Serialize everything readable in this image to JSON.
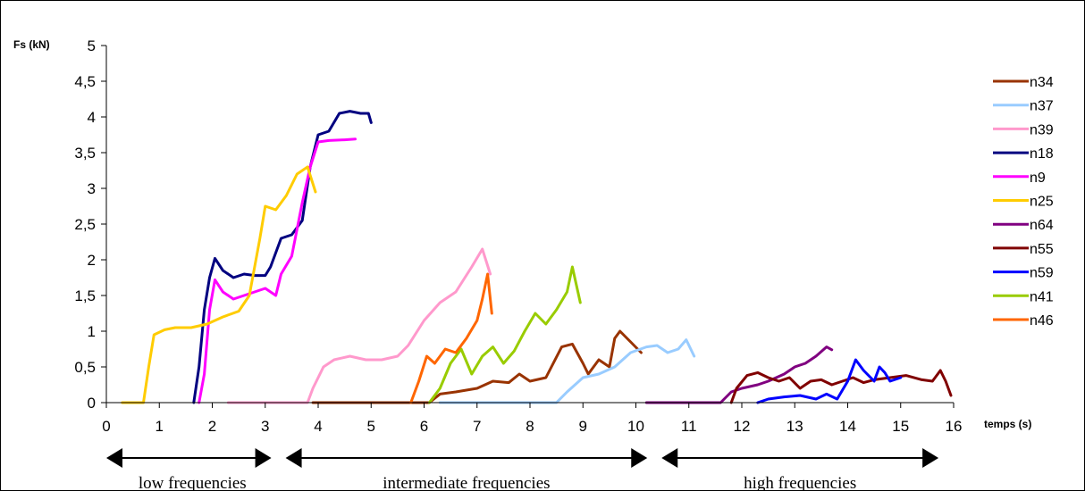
{
  "chart_data": {
    "type": "line",
    "ylabel": "Fs (kN)",
    "xlabel": "temps (s)",
    "xlim": [
      0,
      16
    ],
    "ylim": [
      0,
      5
    ],
    "x_ticks": [
      "0",
      "1",
      "2",
      "3",
      "4",
      "5",
      "6",
      "7",
      "8",
      "9",
      "10",
      "11",
      "12",
      "13",
      "14",
      "15",
      "16"
    ],
    "y_ticks": [
      "0",
      "0,5",
      "1",
      "1,5",
      "2",
      "2,5",
      "3",
      "3,5",
      "4",
      "4,5",
      "5"
    ],
    "legend_position": "right",
    "series": [
      {
        "name": "n34",
        "color": "#993300",
        "points": [
          [
            3.9,
            0
          ],
          [
            6.1,
            0
          ],
          [
            6.3,
            0.12
          ],
          [
            6.6,
            0.15
          ],
          [
            7.0,
            0.2
          ],
          [
            7.3,
            0.3
          ],
          [
            7.6,
            0.28
          ],
          [
            7.8,
            0.4
          ],
          [
            8.0,
            0.3
          ],
          [
            8.3,
            0.35
          ],
          [
            8.6,
            0.78
          ],
          [
            8.8,
            0.82
          ],
          [
            9.0,
            0.55
          ],
          [
            9.1,
            0.4
          ],
          [
            9.3,
            0.6
          ],
          [
            9.5,
            0.5
          ],
          [
            9.6,
            0.9
          ],
          [
            9.7,
            1.0
          ],
          [
            9.9,
            0.85
          ],
          [
            10.1,
            0.7
          ]
        ]
      },
      {
        "name": "n37",
        "color": "#99CCFF",
        "points": [
          [
            6.3,
            0
          ],
          [
            8.5,
            0
          ],
          [
            8.7,
            0.15
          ],
          [
            9.0,
            0.35
          ],
          [
            9.3,
            0.4
          ],
          [
            9.6,
            0.5
          ],
          [
            9.9,
            0.7
          ],
          [
            10.2,
            0.78
          ],
          [
            10.4,
            0.8
          ],
          [
            10.6,
            0.7
          ],
          [
            10.8,
            0.75
          ],
          [
            10.95,
            0.88
          ],
          [
            11.1,
            0.65
          ]
        ]
      },
      {
        "name": "n39",
        "color": "#FF99CC",
        "points": [
          [
            2.3,
            0
          ],
          [
            3.8,
            0
          ],
          [
            3.9,
            0.2
          ],
          [
            4.1,
            0.5
          ],
          [
            4.3,
            0.6
          ],
          [
            4.6,
            0.65
          ],
          [
            4.9,
            0.6
          ],
          [
            5.2,
            0.6
          ],
          [
            5.5,
            0.65
          ],
          [
            5.7,
            0.8
          ],
          [
            6.0,
            1.15
          ],
          [
            6.3,
            1.4
          ],
          [
            6.6,
            1.55
          ],
          [
            6.9,
            1.9
          ],
          [
            7.1,
            2.15
          ],
          [
            7.25,
            1.8
          ]
        ]
      },
      {
        "name": "n18",
        "color": "#000080",
        "points": [
          [
            1.65,
            0
          ],
          [
            1.75,
            0.5
          ],
          [
            1.85,
            1.3
          ],
          [
            1.95,
            1.75
          ],
          [
            2.05,
            2.02
          ],
          [
            2.2,
            1.85
          ],
          [
            2.4,
            1.75
          ],
          [
            2.6,
            1.8
          ],
          [
            2.8,
            1.78
          ],
          [
            3.0,
            1.78
          ],
          [
            3.1,
            1.9
          ],
          [
            3.3,
            2.3
          ],
          [
            3.5,
            2.35
          ],
          [
            3.7,
            2.55
          ],
          [
            3.85,
            3.3
          ],
          [
            4.0,
            3.75
          ],
          [
            4.2,
            3.8
          ],
          [
            4.4,
            4.05
          ],
          [
            4.6,
            4.08
          ],
          [
            4.8,
            4.05
          ],
          [
            4.95,
            4.05
          ],
          [
            5.0,
            3.92
          ]
        ]
      },
      {
        "name": "n9",
        "color": "#FF00FF",
        "points": [
          [
            1.75,
            0
          ],
          [
            1.85,
            0.4
          ],
          [
            1.95,
            1.3
          ],
          [
            2.05,
            1.72
          ],
          [
            2.2,
            1.55
          ],
          [
            2.4,
            1.45
          ],
          [
            2.6,
            1.5
          ],
          [
            2.8,
            1.55
          ],
          [
            3.0,
            1.6
          ],
          [
            3.2,
            1.5
          ],
          [
            3.3,
            1.8
          ],
          [
            3.5,
            2.05
          ],
          [
            3.7,
            2.8
          ],
          [
            3.85,
            3.3
          ],
          [
            4.0,
            3.65
          ],
          [
            4.2,
            3.67
          ],
          [
            4.5,
            3.68
          ],
          [
            4.7,
            3.69
          ]
        ]
      },
      {
        "name": "n25",
        "color": "#FFCC00",
        "points": [
          [
            0.3,
            0
          ],
          [
            0.7,
            0
          ],
          [
            0.8,
            0.5
          ],
          [
            0.9,
            0.95
          ],
          [
            1.1,
            1.02
          ],
          [
            1.3,
            1.05
          ],
          [
            1.6,
            1.05
          ],
          [
            1.9,
            1.1
          ],
          [
            2.2,
            1.2
          ],
          [
            2.5,
            1.28
          ],
          [
            2.7,
            1.5
          ],
          [
            2.9,
            2.3
          ],
          [
            3.0,
            2.75
          ],
          [
            3.2,
            2.7
          ],
          [
            3.4,
            2.9
          ],
          [
            3.6,
            3.2
          ],
          [
            3.8,
            3.3
          ],
          [
            3.95,
            2.95
          ]
        ]
      },
      {
        "name": "n64",
        "color": "#800080",
        "points": [
          [
            10.2,
            0
          ],
          [
            11.6,
            0
          ],
          [
            11.8,
            0.15
          ],
          [
            12.0,
            0.2
          ],
          [
            12.3,
            0.25
          ],
          [
            12.5,
            0.3
          ],
          [
            12.8,
            0.4
          ],
          [
            13.0,
            0.5
          ],
          [
            13.2,
            0.55
          ],
          [
            13.4,
            0.65
          ],
          [
            13.6,
            0.78
          ],
          [
            13.7,
            0.74
          ]
        ]
      },
      {
        "name": "n55",
        "color": "#800000",
        "points": [
          [
            11.8,
            0
          ],
          [
            11.9,
            0.2
          ],
          [
            12.1,
            0.38
          ],
          [
            12.3,
            0.42
          ],
          [
            12.5,
            0.35
          ],
          [
            12.7,
            0.3
          ],
          [
            12.9,
            0.35
          ],
          [
            13.1,
            0.2
          ],
          [
            13.3,
            0.3
          ],
          [
            13.5,
            0.32
          ],
          [
            13.7,
            0.25
          ],
          [
            13.9,
            0.3
          ],
          [
            14.1,
            0.35
          ],
          [
            14.3,
            0.28
          ],
          [
            14.5,
            0.32
          ],
          [
            14.8,
            0.35
          ],
          [
            15.1,
            0.38
          ],
          [
            15.4,
            0.32
          ],
          [
            15.6,
            0.3
          ],
          [
            15.75,
            0.45
          ],
          [
            15.85,
            0.3
          ],
          [
            15.95,
            0.1
          ]
        ]
      },
      {
        "name": "n59",
        "color": "#0000FF",
        "points": [
          [
            12.3,
            0
          ],
          [
            12.5,
            0.05
          ],
          [
            12.8,
            0.08
          ],
          [
            13.1,
            0.1
          ],
          [
            13.4,
            0.05
          ],
          [
            13.6,
            0.12
          ],
          [
            13.8,
            0.05
          ],
          [
            14.0,
            0.3
          ],
          [
            14.15,
            0.6
          ],
          [
            14.3,
            0.45
          ],
          [
            14.5,
            0.3
          ],
          [
            14.6,
            0.5
          ],
          [
            14.7,
            0.42
          ],
          [
            14.8,
            0.3
          ],
          [
            15.0,
            0.35
          ]
        ]
      },
      {
        "name": "n41",
        "color": "#99CC00",
        "points": [
          [
            6.1,
            0
          ],
          [
            6.3,
            0.2
          ],
          [
            6.5,
            0.55
          ],
          [
            6.7,
            0.75
          ],
          [
            6.9,
            0.4
          ],
          [
            7.1,
            0.65
          ],
          [
            7.3,
            0.78
          ],
          [
            7.5,
            0.55
          ],
          [
            7.7,
            0.72
          ],
          [
            7.9,
            1.0
          ],
          [
            8.1,
            1.25
          ],
          [
            8.3,
            1.1
          ],
          [
            8.5,
            1.3
          ],
          [
            8.7,
            1.55
          ],
          [
            8.8,
            1.9
          ],
          [
            8.95,
            1.4
          ]
        ]
      },
      {
        "name": "n46",
        "color": "#FF6600",
        "points": [
          [
            5.75,
            0
          ],
          [
            5.9,
            0.3
          ],
          [
            6.05,
            0.65
          ],
          [
            6.2,
            0.55
          ],
          [
            6.4,
            0.75
          ],
          [
            6.6,
            0.7
          ],
          [
            6.8,
            0.9
          ],
          [
            7.0,
            1.15
          ],
          [
            7.1,
            1.45
          ],
          [
            7.2,
            1.8
          ],
          [
            7.28,
            1.25
          ]
        ]
      }
    ]
  },
  "bands": [
    {
      "label": "low frequencies",
      "from": 0,
      "to": 3.25
    },
    {
      "label": "intermediate frequencies",
      "from": 3.25,
      "to": 10.35
    },
    {
      "label": "high frequencies",
      "from": 10.35,
      "to": 15.85
    }
  ]
}
